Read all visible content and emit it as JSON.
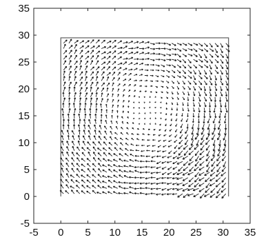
{
  "chart_data": {
    "type": "quiver",
    "title": "",
    "xlabel": "",
    "ylabel": "",
    "xlim": [
      -5,
      35
    ],
    "ylim": [
      -5,
      35
    ],
    "x_ticks": [
      -5,
      0,
      5,
      10,
      15,
      20,
      25,
      30,
      35
    ],
    "y_ticks": [
      -5,
      0,
      5,
      10,
      15,
      20,
      25,
      30,
      35
    ],
    "x_tick_labels": [
      "-5",
      "0",
      "5",
      "10",
      "15",
      "20",
      "25",
      "30",
      "35"
    ],
    "y_tick_labels": [
      "-5",
      "0",
      "5",
      "10",
      "15",
      "20",
      "25",
      "30",
      "35"
    ],
    "grid": false,
    "cavity": {
      "x": [
        0,
        0,
        31,
        31
      ],
      "y": [
        0,
        29.5,
        29.5,
        0
      ]
    },
    "vector_field": {
      "x_range": [
        0.5,
        30.5
      ],
      "y_range": [
        0.5,
        29
      ],
      "spacing": 1,
      "vortex_center": [
        16,
        16
      ],
      "rotation": "clockwise"
    },
    "colors": {
      "axes": "#222222",
      "cavity": "#666666",
      "arrows": "#1a1a1a"
    }
  }
}
